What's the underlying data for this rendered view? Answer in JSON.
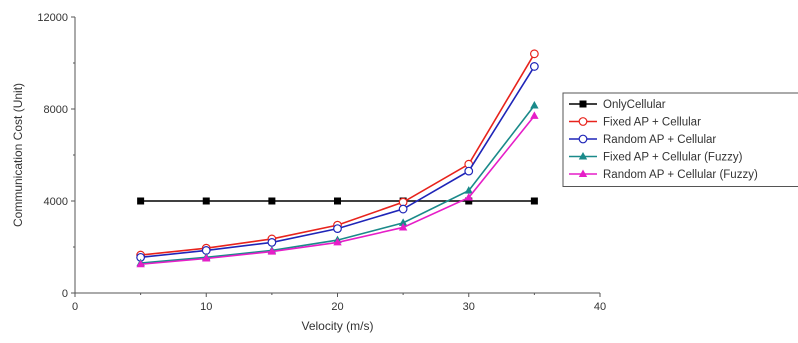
{
  "chart_data": {
    "type": "line",
    "xlabel": "Velocity (m/s)",
    "ylabel": "Communication Cost (Unit)",
    "xlim": [
      0,
      40
    ],
    "ylim": [
      0,
      12000
    ],
    "xticks": [
      0,
      10,
      20,
      30,
      40
    ],
    "yticks": [
      0,
      4000,
      8000,
      12000
    ],
    "grid": false,
    "legend_position": "right",
    "x": [
      5,
      10,
      15,
      20,
      25,
      30,
      35
    ],
    "series": [
      {
        "name": "OnlyCellular",
        "values": [
          4000,
          4000,
          4000,
          4000,
          4000,
          4000,
          4000
        ],
        "color": "#000000",
        "marker": "filled-square"
      },
      {
        "name": "Fixed AP + Cellular",
        "values": [
          1650,
          1950,
          2350,
          2950,
          3950,
          5600,
          10400
        ],
        "color": "#e8231c",
        "marker": "open-circle"
      },
      {
        "name": "Random AP + Cellular",
        "values": [
          1550,
          1850,
          2200,
          2800,
          3650,
          5300,
          9850
        ],
        "color": "#1f25b8",
        "marker": "open-circle"
      },
      {
        "name": "Fixed AP + Cellular (Fuzzy)",
        "values": [
          1300,
          1550,
          1850,
          2300,
          3050,
          4450,
          8150
        ],
        "color": "#1a8a8a",
        "marker": "filled-triangle"
      },
      {
        "name": "Random AP + Cellular (Fuzzy)",
        "values": [
          1250,
          1500,
          1800,
          2200,
          2850,
          4150,
          7700
        ],
        "color": "#e61ec8",
        "marker": "filled-triangle"
      }
    ]
  }
}
